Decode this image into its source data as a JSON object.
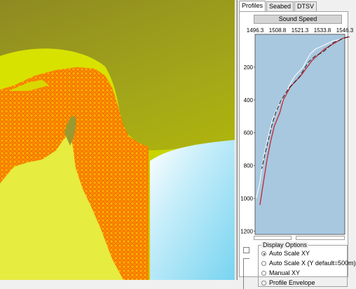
{
  "tabs": [
    "Profiles",
    "Seabed",
    "DTSV"
  ],
  "active_tab": "Profiles",
  "profile": {
    "title": "Sound Speed",
    "x_ticks": [
      "1496.3",
      "1508.8",
      "1521.3",
      "1533.8",
      "1546.3"
    ],
    "y_ticks": [
      "200",
      "400",
      "600",
      "800",
      "1000",
      "1200"
    ],
    "x_range": [
      1496.3,
      1546.3
    ],
    "y_range": [
      0,
      1220
    ],
    "plot_bg": "#a8c8e0",
    "series": [
      {
        "color": "#ffffff",
        "points": [
          [
            1548,
            20
          ],
          [
            1540,
            40
          ],
          [
            1530,
            90
          ],
          [
            1527,
            120
          ],
          [
            1523,
            200
          ],
          [
            1518,
            260
          ],
          [
            1515,
            320
          ],
          [
            1513,
            380
          ],
          [
            1509,
            440
          ],
          [
            1506,
            520
          ],
          [
            1503,
            650
          ],
          [
            1501,
            750
          ],
          [
            1499,
            900
          ],
          [
            1497,
            1000
          ]
        ]
      },
      {
        "color": "#c0303a",
        "points": [
          [
            1549,
            15
          ],
          [
            1545,
            25
          ],
          [
            1535,
            90
          ],
          [
            1528,
            160
          ],
          [
            1522,
            250
          ],
          [
            1516,
            320
          ],
          [
            1512,
            400
          ],
          [
            1510,
            480
          ],
          [
            1507,
            560
          ],
          [
            1505,
            650
          ],
          [
            1503,
            760
          ],
          [
            1501,
            900
          ],
          [
            1499,
            1040
          ]
        ]
      },
      {
        "color": "#1a1a1a",
        "points": [
          [
            1548,
            15
          ],
          [
            1540,
            50
          ],
          [
            1534,
            110
          ],
          [
            1530,
            130
          ],
          [
            1526,
            170
          ],
          [
            1521,
            260
          ],
          [
            1515,
            330
          ],
          [
            1511,
            400
          ],
          [
            1508,
            470
          ],
          [
            1506,
            540
          ],
          [
            1504,
            630
          ],
          [
            1502,
            720
          ],
          [
            1500,
            820
          ]
        ]
      }
    ]
  },
  "display_options": {
    "title": "Display Options",
    "options": [
      "Auto Scale XY",
      "Auto Scale X (Y default=500m)",
      "Manual XY",
      "Profile Envelope"
    ],
    "selected": 0
  },
  "map": {
    "colors": {
      "land_dark": "#8a8a1a",
      "land_mid": "#b0b800",
      "shelf": "#d8e400",
      "shelf_light": "#eef060",
      "deep": "#a8e4f4",
      "grid_fill": "#ff9600",
      "grid_stroke": "#ff5a00"
    }
  }
}
